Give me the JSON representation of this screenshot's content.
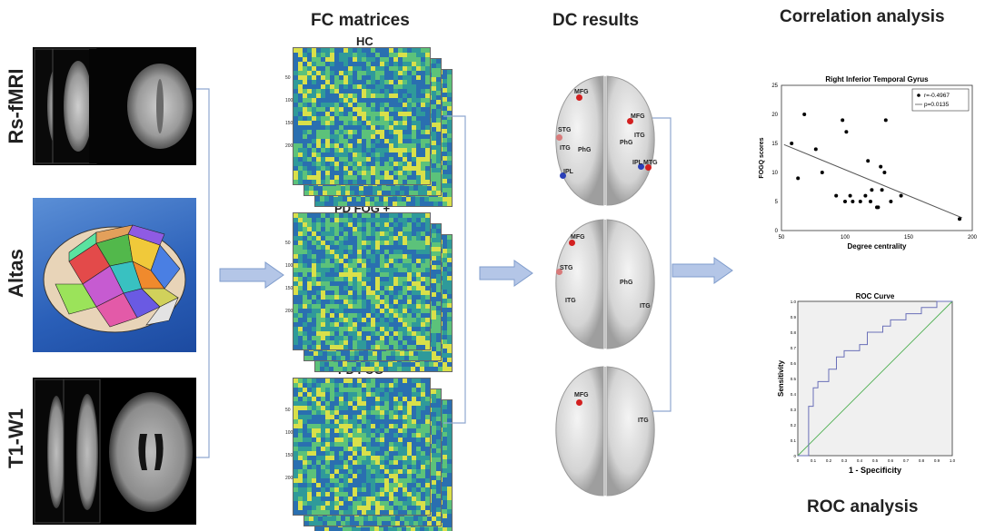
{
  "row_labels": [
    "Rs-fMRI",
    "Altas",
    "T1-W1"
  ],
  "fc": {
    "heading": "FC  matrices",
    "groups": [
      "HC",
      "PD FOG +",
      "PD FOG-"
    ],
    "tick_labels": [
      "50",
      "100",
      "150",
      "200"
    ]
  },
  "dc": {
    "heading": "DC results",
    "brain1_regions": [
      "MFG",
      "STG",
      "ITG",
      "PhG",
      "IPL",
      "MFG",
      "ITG",
      "PhG",
      "IPL",
      "MTG"
    ],
    "brain2_regions": [
      "MFG",
      "STG",
      "PhG",
      "ITG",
      "ITG"
    ],
    "brain3_regions": [
      "MFG",
      "ITG"
    ]
  },
  "correlation": {
    "heading": "Correlation analysis",
    "chart_data": {
      "type": "scatter",
      "title": "Right Inferior Temporal Gyrus",
      "xlabel": "Degree centrality",
      "ylabel": "FOGQ scores",
      "xlim": [
        50,
        200
      ],
      "ylim": [
        0,
        25
      ],
      "xticks": [
        "50",
        "100",
        "150",
        "200"
      ],
      "yticks": [
        "0",
        "5",
        "10",
        "15",
        "20",
        "25"
      ],
      "legend": [
        "r=-0.4967",
        "p=0.0135"
      ],
      "legend_position": "top-right",
      "points": [
        [
          58,
          15
        ],
        [
          63,
          9
        ],
        [
          68,
          20
        ],
        [
          77,
          14
        ],
        [
          82,
          10
        ],
        [
          93,
          6
        ],
        [
          98,
          19
        ],
        [
          101,
          17
        ],
        [
          100,
          5
        ],
        [
          104,
          6
        ],
        [
          106,
          5
        ],
        [
          112,
          5
        ],
        [
          116,
          6
        ],
        [
          118,
          12
        ],
        [
          120,
          5
        ],
        [
          121,
          7
        ],
        [
          125,
          4
        ],
        [
          126,
          4
        ],
        [
          128,
          11
        ],
        [
          129,
          7
        ],
        [
          131,
          10
        ],
        [
          132,
          19
        ],
        [
          136,
          5
        ],
        [
          144,
          6
        ],
        [
          190,
          2
        ]
      ],
      "fit_line": [
        [
          52,
          14.8
        ],
        [
          192,
          2.2
        ]
      ]
    }
  },
  "roc": {
    "heading": "ROC analysis",
    "chart_data": {
      "type": "line",
      "title": "ROC Curve",
      "xlabel": "1 - Specificity",
      "ylabel": "Sensitivity",
      "xlim": [
        0,
        1
      ],
      "ylim": [
        0,
        1
      ],
      "ticks": [
        "0",
        "0.1",
        "0.2",
        "0.3",
        "0.4",
        "0.5",
        "0.6",
        "0.7",
        "0.8",
        "0.9",
        "1.0"
      ],
      "series": [
        {
          "values": [
            [
              0,
              0
            ],
            [
              0.07,
              0.0
            ],
            [
              0.07,
              0.32
            ],
            [
              0.1,
              0.32
            ],
            [
              0.1,
              0.44
            ],
            [
              0.13,
              0.44
            ],
            [
              0.13,
              0.48
            ],
            [
              0.2,
              0.48
            ],
            [
              0.2,
              0.56
            ],
            [
              0.25,
              0.56
            ],
            [
              0.25,
              0.64
            ],
            [
              0.3,
              0.64
            ],
            [
              0.3,
              0.68
            ],
            [
              0.4,
              0.68
            ],
            [
              0.4,
              0.72
            ],
            [
              0.45,
              0.72
            ],
            [
              0.45,
              0.8
            ],
            [
              0.55,
              0.8
            ],
            [
              0.55,
              0.84
            ],
            [
              0.6,
              0.84
            ],
            [
              0.6,
              0.88
            ],
            [
              0.7,
              0.88
            ],
            [
              0.7,
              0.92
            ],
            [
              0.8,
              0.92
            ],
            [
              0.8,
              0.96
            ],
            [
              0.9,
              0.96
            ],
            [
              0.9,
              1.0
            ],
            [
              1.0,
              1.0
            ]
          ]
        }
      ],
      "reference_line": [
        [
          0,
          0
        ],
        [
          1,
          1
        ]
      ]
    }
  },
  "colors": {
    "arrow_fill": "#b4c6e7",
    "arrow_stroke": "#7f9ccc",
    "bracket": "#8fa8d0",
    "roc_curve": "#6a6fb8",
    "roc_reference": "#4caf50",
    "fit_line": "#555555",
    "dot_red": "#d32020",
    "dot_blue": "#2a3fb8"
  }
}
